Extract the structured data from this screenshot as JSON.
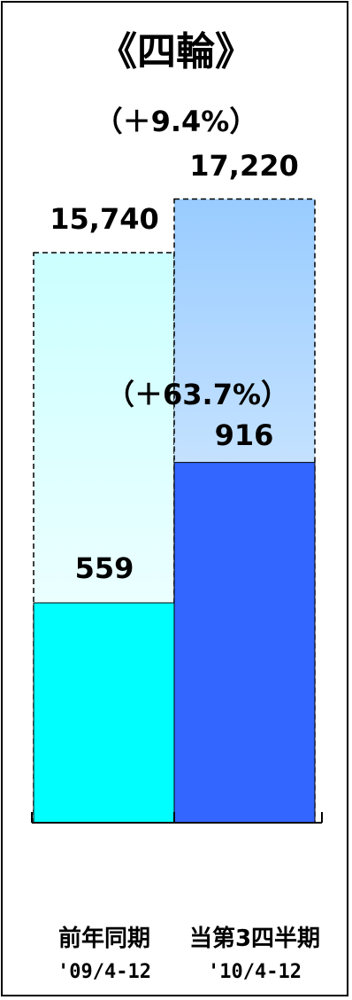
{
  "chart_data": {
    "type": "bar",
    "title": "《四輪》",
    "categories": [
      "前年同期",
      "当第3四半期"
    ],
    "periods": [
      "'09/4-12",
      "'10/4-12"
    ],
    "series": [
      {
        "values": [
          559,
          916
        ]
      },
      {
        "values": [
          15740,
          17220
        ]
      }
    ],
    "labels": {
      "segment": [
        "559",
        "916"
      ],
      "total": [
        "15,740",
        "17,220"
      ]
    },
    "changes": {
      "total": "（＋9.4%）",
      "segment": "（＋63.7%）"
    },
    "colors": {
      "segment": [
        "#00FFFF",
        "#3366FF"
      ],
      "total_top": [
        "#CCFFFF",
        "#99CCFF"
      ],
      "total_bottom": "#FFFFFF"
    }
  }
}
